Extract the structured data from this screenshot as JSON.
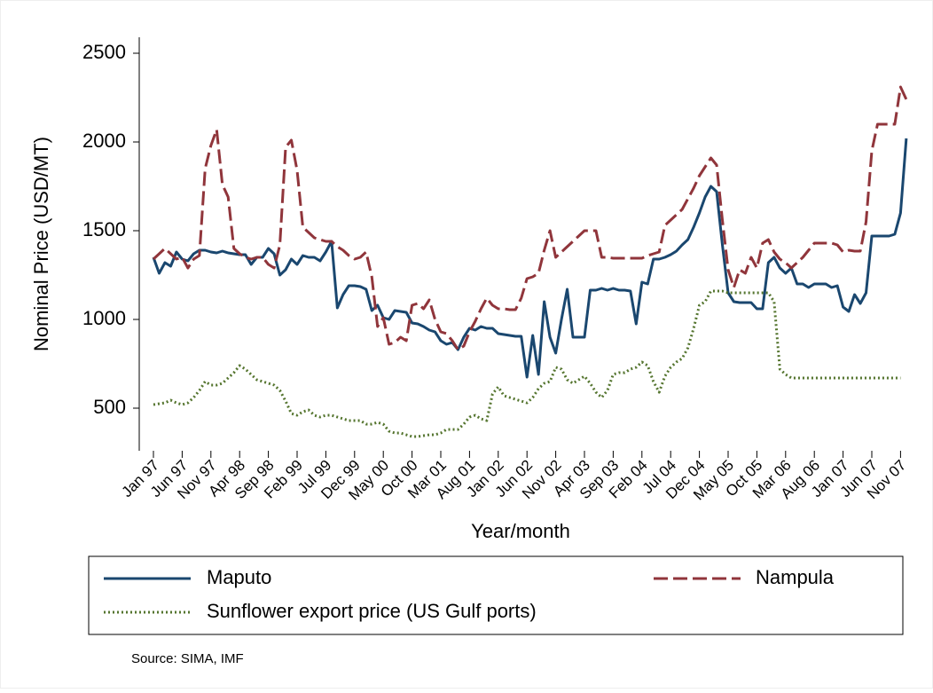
{
  "chart_data": {
    "type": "line",
    "ylabel": "Nominal Price (USD/MT)",
    "xlabel": "Year/month",
    "source": "Source: SIMA, IMF",
    "categories": [
      "Jan 97",
      null,
      null,
      null,
      null,
      "Jun 97",
      null,
      null,
      null,
      null,
      "Nov 97",
      null,
      null,
      null,
      null,
      "Apr 98",
      null,
      null,
      null,
      null,
      "Sep 98",
      null,
      null,
      null,
      null,
      "Feb 99",
      null,
      null,
      null,
      null,
      "Jul 99",
      null,
      null,
      null,
      null,
      "Dec 99",
      null,
      null,
      null,
      null,
      "May 00",
      null,
      null,
      null,
      null,
      "Oct 00",
      null,
      null,
      null,
      null,
      "Mar 01",
      null,
      null,
      null,
      null,
      "Aug 01",
      null,
      null,
      null,
      null,
      "Jan 02",
      null,
      null,
      null,
      null,
      "Jun 02",
      null,
      null,
      null,
      null,
      "Nov 02",
      null,
      null,
      null,
      null,
      "Apr 03",
      null,
      null,
      null,
      null,
      "Sep 03",
      null,
      null,
      null,
      null,
      "Feb 04",
      null,
      null,
      null,
      null,
      "Jul 04",
      null,
      null,
      null,
      null,
      "Dec 04",
      null,
      null,
      null,
      null,
      "May 05",
      null,
      null,
      null,
      null,
      "Oct 05",
      null,
      null,
      null,
      null,
      "Mar 06",
      null,
      null,
      null,
      null,
      "Aug 06",
      null,
      null,
      null,
      null,
      "Jan 07",
      null,
      null,
      null,
      null,
      "Jun 07",
      null,
      null,
      null,
      null,
      "Nov 07",
      null
    ],
    "series": [
      {
        "name": "Maputo",
        "color": "#1a476f",
        "dash": "solid",
        "values": [
          1350,
          1260,
          1320,
          1300,
          1380,
          1340,
          1330,
          1370,
          1390,
          1390,
          1380,
          1375,
          1385,
          1375,
          1370,
          1365,
          1365,
          1310,
          1350,
          1350,
          1400,
          1370,
          1250,
          1280,
          1340,
          1310,
          1360,
          1350,
          1350,
          1330,
          1380,
          1440,
          1065,
          1140,
          1190,
          1190,
          1185,
          1170,
          1050,
          1080,
          1010,
          1000,
          1050,
          1045,
          1040,
          980,
          975,
          960,
          940,
          930,
          880,
          860,
          870,
          830,
          900,
          950,
          940,
          960,
          950,
          950,
          920,
          915,
          910,
          905,
          905,
          675,
          910,
          690,
          1100,
          900,
          810,
          1000,
          1170,
          900,
          900,
          900,
          1165,
          1165,
          1175,
          1165,
          1175,
          1165,
          1165,
          1160,
          975,
          1210,
          1200,
          1340,
          1340,
          1350,
          1365,
          1385,
          1420,
          1450,
          1520,
          1600,
          1690,
          1750,
          1720,
          1420,
          1150,
          1100,
          1095,
          1095,
          1095,
          1060,
          1060,
          1320,
          1350,
          1290,
          1260,
          1290,
          1200,
          1200,
          1180,
          1200,
          1200,
          1200,
          1180,
          1190,
          1070,
          1045,
          1140,
          1090,
          1150,
          1470,
          1470,
          1470,
          1470,
          1480,
          1600,
          2020
        ]
      },
      {
        "name": "Nampula",
        "color": "#90353b",
        "dash": "dashed",
        "values": [
          1340,
          1370,
          1400,
          1370,
          1340,
          1350,
          1290,
          1340,
          1360,
          1850,
          1980,
          2070,
          1760,
          1690,
          1400,
          1370,
          1350,
          1340,
          1350,
          1350,
          1310,
          1290,
          1420,
          1970,
          2010,
          1840,
          1520,
          1490,
          1460,
          1450,
          1440,
          1440,
          1410,
          1390,
          1360,
          1340,
          1350,
          1380,
          1240,
          960,
          1010,
          860,
          870,
          900,
          880,
          1080,
          1090,
          1060,
          1110,
          1000,
          930,
          920,
          880,
          830,
          850,
          930,
          990,
          1060,
          1120,
          1080,
          1060,
          1060,
          1055,
          1055,
          1120,
          1230,
          1240,
          1260,
          1390,
          1500,
          1350,
          1380,
          1410,
          1440,
          1470,
          1500,
          1500,
          1500,
          1350,
          1350,
          1345,
          1345,
          1345,
          1345,
          1345,
          1345,
          1360,
          1370,
          1380,
          1530,
          1560,
          1590,
          1620,
          1680,
          1740,
          1810,
          1860,
          1910,
          1870,
          1560,
          1280,
          1180,
          1280,
          1260,
          1350,
          1290,
          1430,
          1450,
          1380,
          1340,
          1320,
          1290,
          1320,
          1350,
          1390,
          1430,
          1430,
          1430,
          1430,
          1420,
          1380,
          1390,
          1385,
          1385,
          1550,
          1950,
          2100,
          2100,
          2100,
          2100,
          2310,
          2240
        ]
      },
      {
        "name": "Sunflower export price (US Gulf ports)",
        "color": "#55752f",
        "dash": "dotted",
        "values": [
          520,
          525,
          530,
          545,
          530,
          520,
          530,
          560,
          600,
          650,
          630,
          630,
          640,
          670,
          700,
          740,
          720,
          690,
          660,
          650,
          640,
          630,
          600,
          540,
          470,
          460,
          480,
          490,
          460,
          450,
          460,
          460,
          450,
          440,
          430,
          430,
          430,
          410,
          410,
          420,
          410,
          370,
          360,
          360,
          350,
          340,
          340,
          345,
          350,
          350,
          360,
          380,
          380,
          380,
          410,
          450,
          460,
          440,
          430,
          580,
          620,
          570,
          560,
          550,
          540,
          530,
          560,
          610,
          640,
          650,
          730,
          720,
          660,
          640,
          660,
          680,
          640,
          590,
          560,
          600,
          690,
          700,
          700,
          720,
          730,
          760,
          740,
          650,
          590,
          680,
          730,
          760,
          780,
          840,
          950,
          1080,
          1100,
          1160,
          1160,
          1160,
          1150,
          1150,
          1150,
          1150,
          1150,
          1150,
          1150,
          1150,
          1100,
          720,
          690,
          670,
          670,
          670,
          670,
          670,
          670,
          670,
          670,
          670,
          670,
          670,
          670,
          670,
          670,
          670,
          670,
          670,
          670,
          670,
          670,
          null
        ]
      }
    ],
    "ylim": [
      260,
      2590
    ],
    "yticks": [
      500,
      1000,
      1500,
      2000,
      2500
    ],
    "grid": false
  }
}
